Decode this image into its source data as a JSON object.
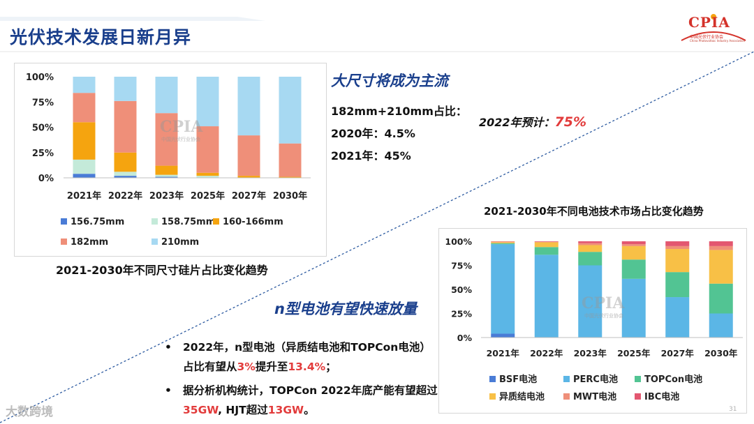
{
  "page": {
    "title": "光伏技术发展日新月异",
    "logo_text": "CPIA",
    "logo_subtitle": "中国光伏行业协会",
    "logo_subtitle_en": "China Photovoltaic Industry Association",
    "watermark": "CPIA",
    "watermark_sub": "中国光伏行业协会",
    "page_number": "31",
    "brand_watermark": "大数跨境"
  },
  "section1": {
    "heading": "大尺寸将成为主流",
    "share_label": "182mm+210mm占比：",
    "line_2020": "2020年：4.5%",
    "line_2021": "2021年：45%",
    "forecast_label": "2022年预计：",
    "forecast_value": "75%"
  },
  "section2": {
    "heading": "n型电池有望快速放量",
    "b1_part1": "2022年，n型电池（异质结电池和TOPCon电池）占比有望从",
    "b1_v1": "3%",
    "b1_part2": "提升至",
    "b1_v2": "13.4%",
    "b1_part3": "；",
    "b2_part1": "据分析机构统计，TOPCon 2022年底产能有望超过",
    "b2_v1": "35GW",
    "b2_part2": ", HJT超过",
    "b2_v2": "13GW",
    "b2_part3": "。",
    "bullet_glyph": "•"
  },
  "chart_data": [
    {
      "type": "bar",
      "stacked": true,
      "title": "2021-2030年不同尺寸硅片占比变化趋势",
      "categories": [
        "2021年",
        "2022年",
        "2023年",
        "2025年",
        "2027年",
        "2030年"
      ],
      "yticks": [
        "0%",
        "25%",
        "50%",
        "75%",
        "100%"
      ],
      "ylim": [
        0,
        100
      ],
      "series": [
        {
          "name": "156.75mm",
          "color": "#4a7cd6",
          "values": [
            4,
            2,
            1,
            0,
            0,
            0
          ]
        },
        {
          "name": "158.75mm",
          "color": "#c4ead9",
          "values": [
            14,
            4,
            2,
            2,
            0,
            0
          ]
        },
        {
          "name": "160-166mm",
          "color": "#f5a40f",
          "values": [
            37,
            19,
            9,
            3,
            2,
            1
          ]
        },
        {
          "name": "182mm",
          "color": "#ef8f79",
          "values": [
            29,
            51,
            52,
            46,
            40,
            33
          ]
        },
        {
          "name": "210mm",
          "color": "#a7d9f2",
          "values": [
            16,
            24,
            36,
            49,
            58,
            66
          ]
        }
      ],
      "legend": "bottom"
    },
    {
      "type": "bar",
      "stacked": true,
      "title": "2021-2030年不同电池技术市场占比变化趋势",
      "categories": [
        "2021年",
        "2022年",
        "2023年",
        "2025年",
        "2027年",
        "2030年"
      ],
      "yticks": [
        "0%",
        "25%",
        "50%",
        "75%",
        "100%"
      ],
      "ylim": [
        0,
        100
      ],
      "series": [
        {
          "name": "BSF电池",
          "color": "#4a7cd6",
          "values": [
            4,
            0,
            0,
            0,
            0,
            0
          ]
        },
        {
          "name": "PERC电池",
          "color": "#5bb6e6",
          "values": [
            93,
            86,
            75,
            61,
            42,
            25
          ]
        },
        {
          "name": "TOPCon电池",
          "color": "#52c493",
          "values": [
            1,
            8,
            14,
            20,
            26,
            31
          ]
        },
        {
          "name": "异质结电池",
          "color": "#f8c046",
          "values": [
            1,
            5,
            7,
            14,
            24,
            35
          ]
        },
        {
          "name": "MWT电池",
          "color": "#ef8f79",
          "values": [
            1,
            0.5,
            2,
            2,
            3,
            4
          ]
        },
        {
          "name": "IBC电池",
          "color": "#e35770",
          "values": [
            0,
            0.5,
            2,
            3,
            5,
            5
          ]
        }
      ],
      "legend": "bottom"
    }
  ]
}
